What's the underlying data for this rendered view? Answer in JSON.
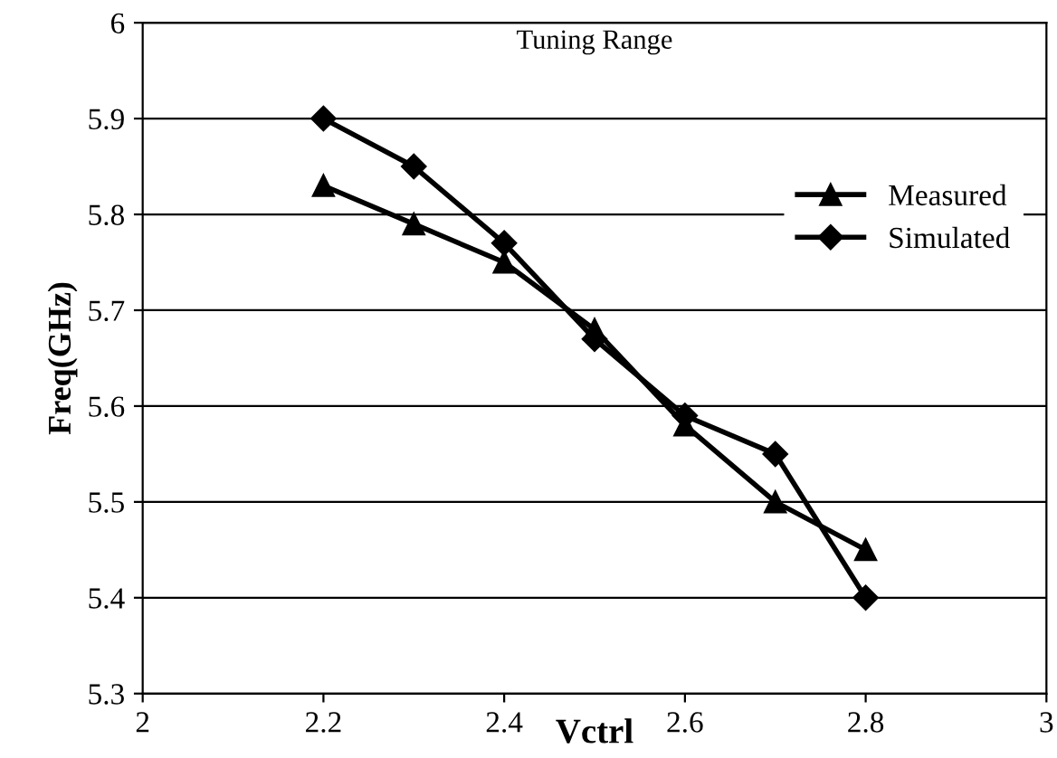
{
  "chart_data": {
    "type": "line",
    "title": "Tuning Range",
    "xlabel": "Vctrl",
    "ylabel": "Freq(GHz)",
    "x": [
      2.2,
      2.3,
      2.4,
      2.5,
      2.6,
      2.7,
      2.8
    ],
    "series": [
      {
        "name": "Measured",
        "color": "#000000",
        "marker": "triangle",
        "values": [
          5.83,
          5.79,
          5.75,
          5.68,
          5.58,
          5.5,
          5.45
        ]
      },
      {
        "name": "Simulated",
        "color": "#000000",
        "marker": "diamond",
        "values": [
          5.9,
          5.85,
          5.77,
          5.67,
          5.59,
          5.55,
          5.4
        ]
      }
    ],
    "xlim": [
      2,
      3
    ],
    "xticks": [
      2,
      2.2,
      2.4,
      2.6,
      2.8,
      3
    ],
    "ylim": [
      5.3,
      6
    ],
    "yticks": [
      5.3,
      5.4,
      5.5,
      5.6,
      5.7,
      5.8,
      5.9,
      6
    ],
    "grid": "y",
    "legend": "top right",
    "line_style": "solid"
  }
}
